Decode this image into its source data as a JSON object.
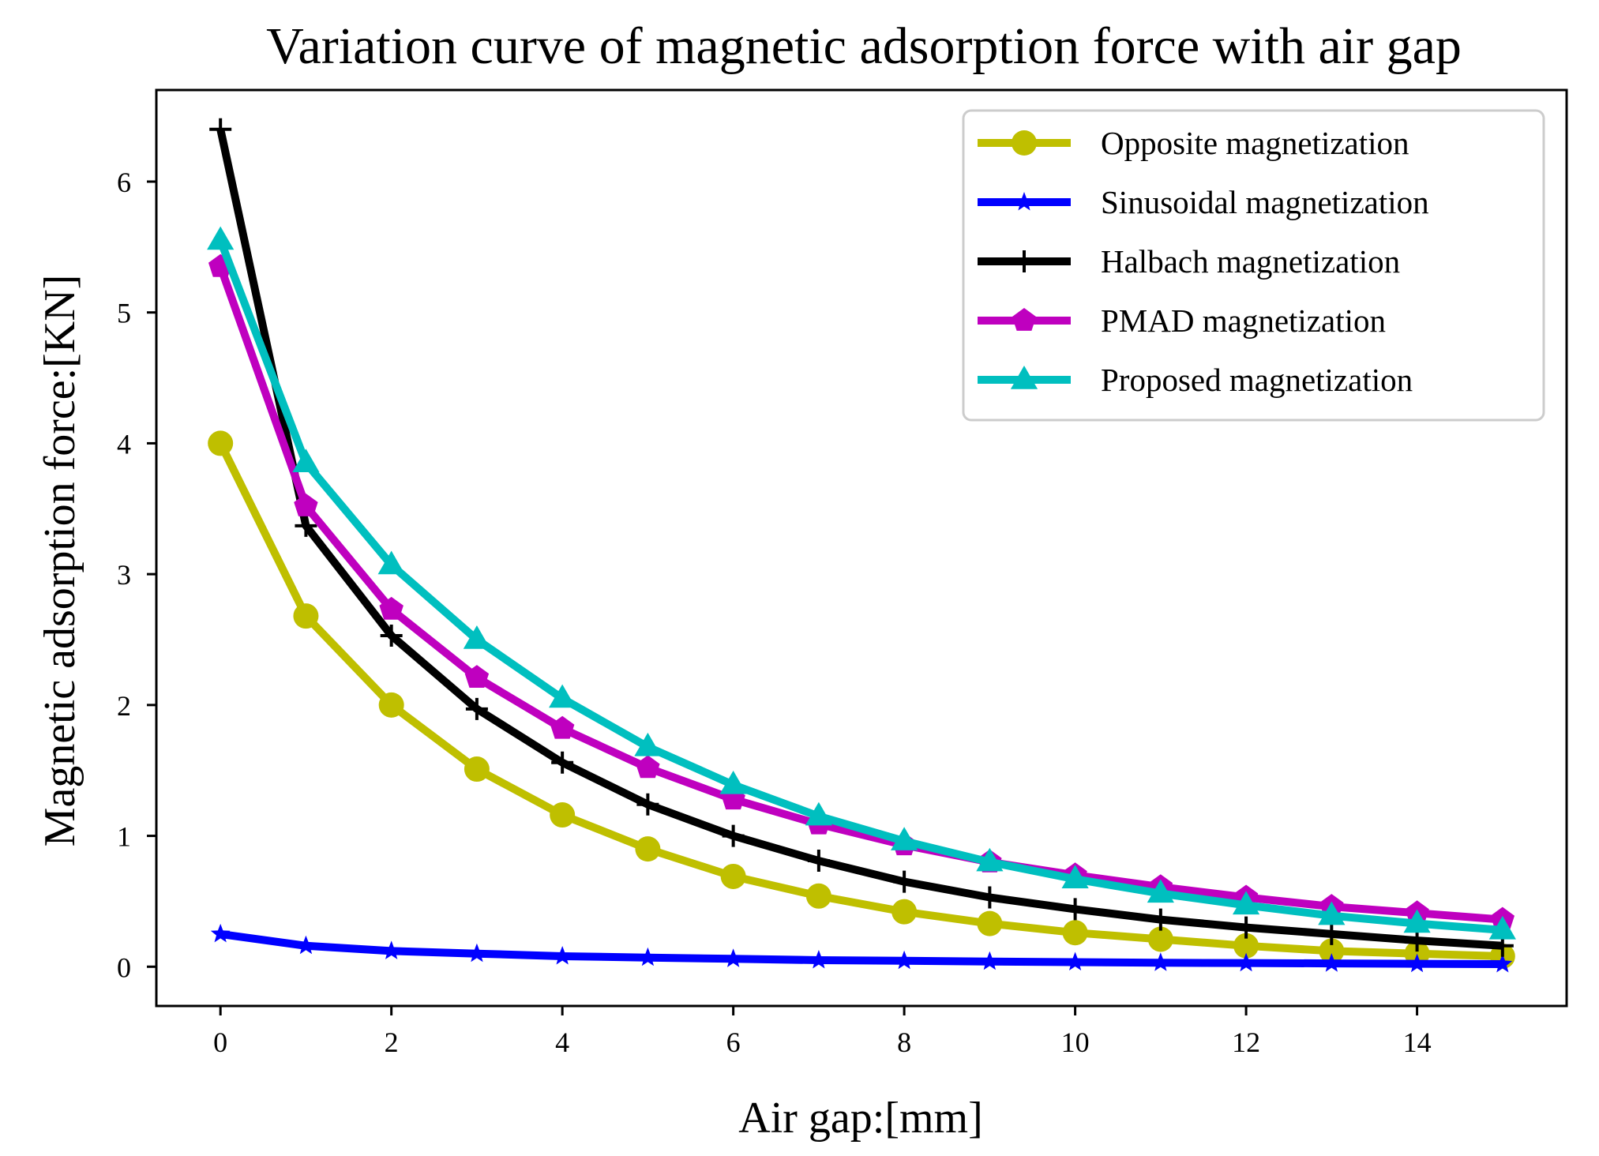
{
  "chart_data": {
    "type": "line",
    "title": "Variation curve of magnetic adsorption force with air gap",
    "xlabel": "Air gap:[mm]",
    "ylabel": "Magnetic adsorption force:[KN]",
    "xlim": [
      -0.75,
      15.75
    ],
    "ylim": [
      -0.3,
      6.7
    ],
    "xticks": [
      0,
      2,
      4,
      6,
      8,
      10,
      12,
      14
    ],
    "yticks": [
      0,
      1,
      2,
      3,
      4,
      5,
      6
    ],
    "grid": false,
    "legend_position": "top-right",
    "x": [
      0,
      1,
      2,
      3,
      4,
      5,
      6,
      7,
      8,
      9,
      10,
      11,
      12,
      13,
      14,
      15
    ],
    "series": [
      {
        "name": "Opposite magnetization",
        "color": "#bfbf00",
        "marker": "circle",
        "values": [
          4.0,
          2.68,
          2.0,
          1.51,
          1.16,
          0.9,
          0.69,
          0.54,
          0.42,
          0.33,
          0.26,
          0.21,
          0.16,
          0.12,
          0.1,
          0.08
        ]
      },
      {
        "name": "Sinusoidal magnetization",
        "color": "#0000ff",
        "marker": "star",
        "values": [
          0.25,
          0.16,
          0.12,
          0.1,
          0.08,
          0.07,
          0.06,
          0.05,
          0.045,
          0.04,
          0.035,
          0.03,
          0.028,
          0.025,
          0.022,
          0.02
        ]
      },
      {
        "name": "Halbach magnetization",
        "color": "#000000",
        "marker": "plus",
        "values": [
          6.4,
          3.37,
          2.53,
          1.97,
          1.56,
          1.24,
          1.0,
          0.81,
          0.65,
          0.53,
          0.44,
          0.36,
          0.3,
          0.25,
          0.2,
          0.16
        ]
      },
      {
        "name": "PMAD magnetization",
        "color": "#bf00bf",
        "marker": "pentagon",
        "values": [
          5.35,
          3.52,
          2.73,
          2.21,
          1.82,
          1.52,
          1.28,
          1.09,
          0.93,
          0.8,
          0.7,
          0.61,
          0.53,
          0.46,
          0.41,
          0.36
        ]
      },
      {
        "name": "Proposed magnetization",
        "color": "#00bfbf",
        "marker": "triangle",
        "values": [
          5.55,
          3.85,
          3.07,
          2.5,
          2.05,
          1.68,
          1.39,
          1.15,
          0.96,
          0.8,
          0.67,
          0.56,
          0.47,
          0.39,
          0.33,
          0.28
        ]
      }
    ]
  }
}
